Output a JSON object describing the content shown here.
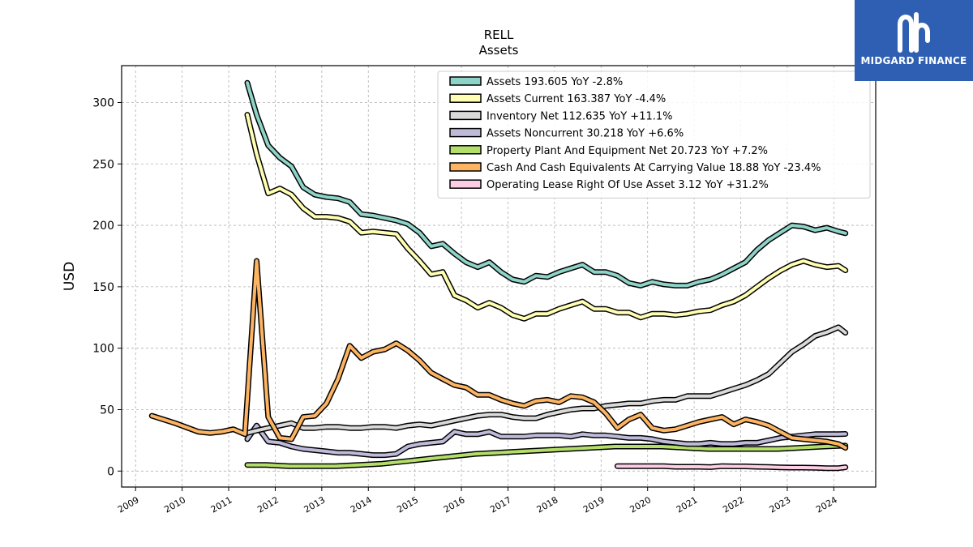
{
  "chart_data": {
    "type": "line",
    "title": "RELL",
    "subtitle": "Assets",
    "ylabel": "USD",
    "xlabel": "",
    "xlim": [
      2008.7,
      2024.9
    ],
    "ylim": [
      -13,
      330
    ],
    "y_ticks": [
      0,
      50,
      100,
      150,
      200,
      250,
      300
    ],
    "x_ticks": [
      2009,
      2010,
      2011,
      2012,
      2013,
      2014,
      2015,
      2016,
      2017,
      2018,
      2019,
      2020,
      2021,
      2022,
      2023,
      2024
    ],
    "x_tick_labels": [
      "2009",
      "2010",
      "2011",
      "2012",
      "2013",
      "2014",
      "2015",
      "2016",
      "2017",
      "2018",
      "2019",
      "2020",
      "2021",
      "2022",
      "2023",
      "2024"
    ],
    "grid": true,
    "legend_position": "top-right",
    "series": [
      {
        "name": "Assets  193.605 YoY -2.8%",
        "color": "#8dd3c7",
        "x": [
          2011.4,
          2011.6,
          2011.85,
          2012.1,
          2012.35,
          2012.6,
          2012.85,
          2013.1,
          2013.35,
          2013.6,
          2013.85,
          2014.1,
          2014.35,
          2014.6,
          2014.85,
          2015.1,
          2015.35,
          2015.6,
          2015.85,
          2016.1,
          2016.35,
          2016.6,
          2016.85,
          2017.1,
          2017.35,
          2017.6,
          2017.85,
          2018.1,
          2018.35,
          2018.6,
          2018.85,
          2019.1,
          2019.35,
          2019.6,
          2019.85,
          2020.1,
          2020.35,
          2020.6,
          2020.85,
          2021.1,
          2021.35,
          2021.6,
          2021.85,
          2022.1,
          2022.35,
          2022.6,
          2022.85,
          2023.1,
          2023.35,
          2023.6,
          2023.85,
          2024.1,
          2024.25
        ],
        "values": [
          316,
          290,
          265,
          255,
          248,
          231,
          225,
          223,
          222,
          219,
          209,
          208,
          206,
          204,
          201,
          194,
          183,
          185,
          177,
          170,
          166,
          170,
          162,
          156,
          154,
          159,
          158,
          162,
          165,
          168,
          162,
          162,
          159,
          153,
          151,
          154,
          152,
          151,
          151,
          154,
          156,
          160,
          165,
          170,
          180,
          188,
          194,
          200,
          199,
          196,
          198,
          195,
          193.6
        ]
      },
      {
        "name": "Assets Current  163.387 YoY -4.4%",
        "color": "#ffffb3",
        "x": [
          2011.4,
          2011.6,
          2011.85,
          2012.1,
          2012.35,
          2012.6,
          2012.85,
          2013.1,
          2013.35,
          2013.6,
          2013.85,
          2014.1,
          2014.35,
          2014.6,
          2014.85,
          2015.1,
          2015.35,
          2015.6,
          2015.85,
          2016.1,
          2016.35,
          2016.6,
          2016.85,
          2017.1,
          2017.35,
          2017.6,
          2017.85,
          2018.1,
          2018.35,
          2018.6,
          2018.85,
          2019.1,
          2019.35,
          2019.6,
          2019.85,
          2020.1,
          2020.35,
          2020.6,
          2020.85,
          2021.1,
          2021.35,
          2021.6,
          2021.85,
          2022.1,
          2022.35,
          2022.6,
          2022.85,
          2023.1,
          2023.35,
          2023.6,
          2023.85,
          2024.1,
          2024.25
        ],
        "values": [
          290,
          258,
          226,
          230,
          225,
          214,
          207,
          207,
          206,
          203,
          194,
          195,
          194,
          193,
          181,
          171,
          160,
          162,
          143,
          139,
          133,
          137,
          133,
          127,
          124,
          128,
          128,
          132,
          135,
          138,
          132,
          132,
          129,
          129,
          125,
          128,
          128,
          127,
          128,
          130,
          131,
          135,
          138,
          143,
          150,
          157,
          163,
          168,
          171,
          168,
          166,
          167,
          163.4
        ]
      },
      {
        "name": "Inventory Net  112.635 YoY +11.1%",
        "color": "#d9d9d9",
        "x": [
          2011.4,
          2011.6,
          2011.85,
          2012.1,
          2012.35,
          2012.6,
          2012.85,
          2013.1,
          2013.35,
          2013.6,
          2013.85,
          2014.1,
          2014.35,
          2014.6,
          2014.85,
          2015.1,
          2015.35,
          2015.6,
          2015.85,
          2016.1,
          2016.35,
          2016.6,
          2016.85,
          2017.1,
          2017.35,
          2017.6,
          2017.85,
          2018.1,
          2018.35,
          2018.6,
          2018.85,
          2019.1,
          2019.35,
          2019.6,
          2019.85,
          2020.1,
          2020.35,
          2020.6,
          2020.85,
          2021.1,
          2021.35,
          2021.6,
          2021.85,
          2022.1,
          2022.35,
          2022.6,
          2022.85,
          2023.1,
          2023.35,
          2023.6,
          2023.85,
          2024.1,
          2024.25
        ],
        "values": [
          31,
          33,
          35,
          37,
          39,
          35,
          35,
          36,
          36,
          35,
          35,
          36,
          36,
          35,
          37,
          38,
          37,
          39,
          41,
          43,
          45,
          46,
          46,
          44,
          43,
          43,
          46,
          48,
          50,
          51,
          51,
          53,
          54,
          55,
          55,
          57,
          58,
          58,
          61,
          61,
          61,
          64,
          67,
          70,
          74,
          79,
          88,
          97,
          103,
          110,
          113,
          117,
          112.6
        ]
      },
      {
        "name": "Assets Noncurrent  30.218 YoY +6.6%",
        "color": "#bebada",
        "x": [
          2011.4,
          2011.6,
          2011.85,
          2012.1,
          2012.35,
          2012.6,
          2012.85,
          2013.1,
          2013.35,
          2013.6,
          2013.85,
          2014.1,
          2014.35,
          2014.6,
          2014.85,
          2015.1,
          2015.35,
          2015.6,
          2015.85,
          2016.1,
          2016.35,
          2016.6,
          2016.85,
          2017.1,
          2017.35,
          2017.6,
          2017.85,
          2018.1,
          2018.35,
          2018.6,
          2018.85,
          2019.1,
          2019.35,
          2019.6,
          2019.85,
          2020.1,
          2020.35,
          2020.6,
          2020.85,
          2021.1,
          2021.35,
          2021.6,
          2021.85,
          2022.1,
          2022.35,
          2022.6,
          2022.85,
          2023.1,
          2023.35,
          2023.6,
          2023.85,
          2024.1,
          2024.25
        ],
        "values": [
          26,
          37,
          24,
          23,
          20,
          18,
          17,
          16,
          15,
          15,
          14,
          13,
          13,
          14,
          20,
          22,
          23,
          24,
          32,
          30,
          30,
          32,
          28,
          28,
          28,
          29,
          29,
          29,
          28,
          30,
          29,
          29,
          28,
          27,
          27,
          26,
          24,
          23,
          22,
          22,
          23,
          22,
          22,
          23,
          23,
          25,
          27,
          28,
          29,
          30,
          30,
          30,
          30.2
        ]
      },
      {
        "name": "Property Plant And Equipment Net  20.723 YoY +7.2%",
        "color": "#b3de69",
        "x": [
          2011.4,
          2011.8,
          2012.3,
          2012.8,
          2013.3,
          2013.8,
          2014.3,
          2014.8,
          2015.3,
          2015.8,
          2016.3,
          2016.8,
          2017.3,
          2017.8,
          2018.3,
          2018.8,
          2019.3,
          2019.8,
          2020.3,
          2020.8,
          2021.3,
          2021.8,
          2022.3,
          2022.8,
          2023.3,
          2023.8,
          2024.25
        ],
        "values": [
          5,
          5,
          4,
          4,
          4,
          5,
          6,
          8,
          10,
          12,
          14,
          15,
          16,
          17,
          18,
          19,
          20,
          20,
          20,
          19,
          18,
          18,
          18,
          18,
          19,
          20,
          20.7
        ]
      },
      {
        "name": "Cash And Cash Equivalents At Carrying Value  18.88 YoY -23.4%",
        "color": "#fdb462",
        "x": [
          2009.35,
          2009.85,
          2010.35,
          2010.6,
          2010.85,
          2011.1,
          2011.35,
          2011.6,
          2011.85,
          2012.1,
          2012.35,
          2012.6,
          2012.85,
          2013.1,
          2013.35,
          2013.6,
          2013.85,
          2014.1,
          2014.35,
          2014.6,
          2014.85,
          2015.1,
          2015.35,
          2015.6,
          2015.85,
          2016.1,
          2016.35,
          2016.6,
          2016.85,
          2017.1,
          2017.35,
          2017.6,
          2017.85,
          2018.1,
          2018.35,
          2018.6,
          2018.85,
          2019.1,
          2019.35,
          2019.6,
          2019.85,
          2020.1,
          2020.35,
          2020.6,
          2020.85,
          2021.1,
          2021.35,
          2021.6,
          2021.85,
          2022.1,
          2022.35,
          2022.6,
          2022.85,
          2023.1,
          2023.35,
          2023.6,
          2023.85,
          2024.1,
          2024.25
        ],
        "values": [
          45,
          39,
          32,
          31,
          32,
          34,
          30,
          171,
          44,
          27,
          26,
          44,
          45,
          55,
          75,
          102,
          92,
          97,
          99,
          104,
          98,
          90,
          80,
          75,
          70,
          68,
          62,
          62,
          58,
          55,
          53,
          57,
          58,
          56,
          61,
          60,
          56,
          47,
          35,
          42,
          46,
          35,
          33,
          34,
          37,
          40,
          42,
          44,
          38,
          42,
          40,
          37,
          32,
          27,
          26,
          25,
          24,
          22,
          18.9
        ]
      },
      {
        "name": "Operating Lease Right Of Use Asset  3.12 YoY +31.2%",
        "color": "#fccde5",
        "x": [
          2019.35,
          2019.6,
          2019.85,
          2020.1,
          2020.35,
          2020.6,
          2020.85,
          2021.1,
          2021.35,
          2021.6,
          2021.85,
          2022.1,
          2022.35,
          2022.6,
          2022.85,
          2023.1,
          2023.35,
          2023.6,
          2023.85,
          2024.1,
          2024.25
        ],
        "values": [
          4,
          4,
          4,
          4,
          4,
          3.5,
          3.5,
          3.5,
          3.2,
          4,
          3.8,
          3.8,
          3.5,
          3.3,
          3,
          2.8,
          2.8,
          2.6,
          2.4,
          2.4,
          3.1
        ]
      }
    ]
  },
  "branding": {
    "logo_text": "MIDGARD FINANCE",
    "logo_icon": "midgard-logo-icon",
    "logo_color": "#2f5fb3"
  }
}
